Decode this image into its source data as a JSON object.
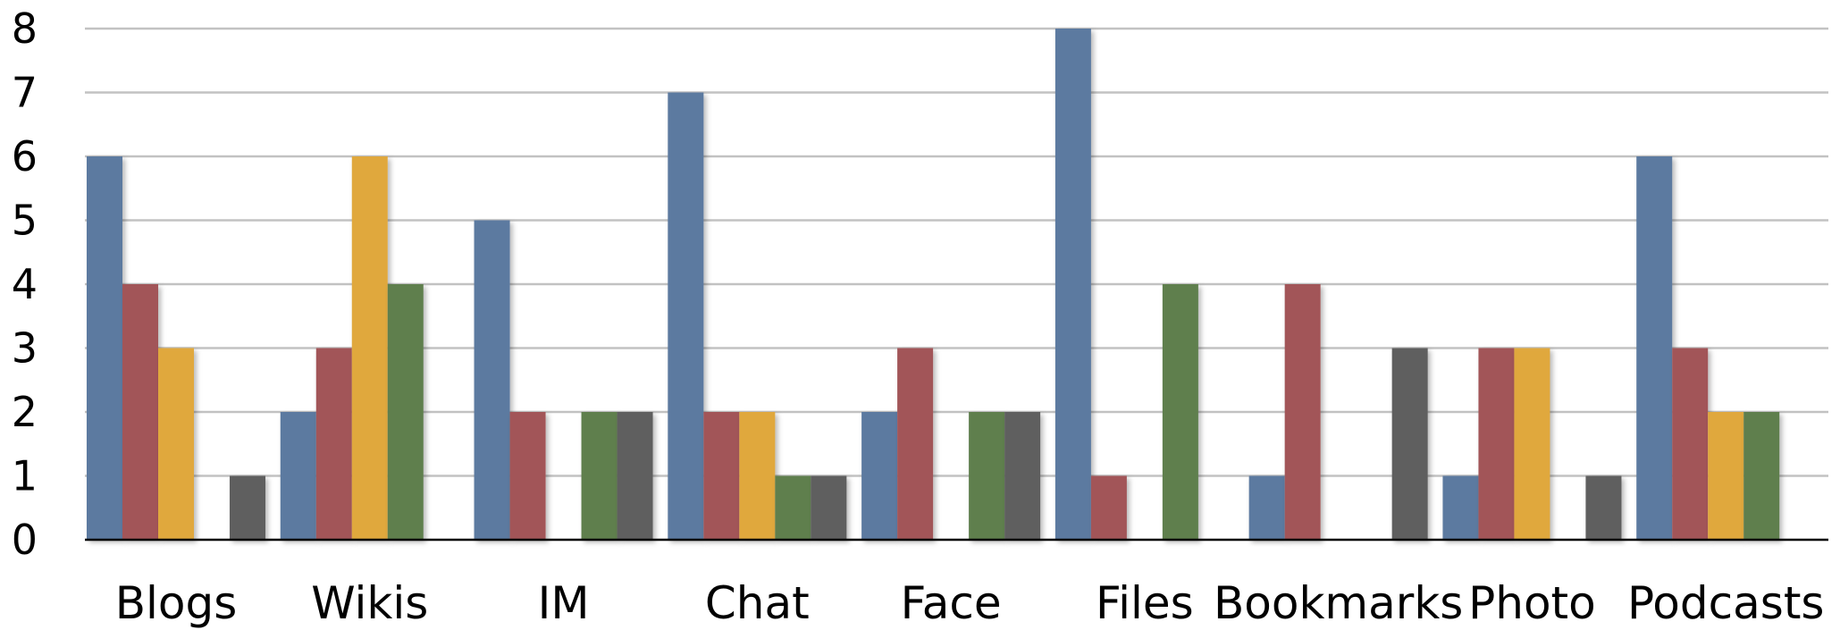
{
  "chart_data": {
    "type": "bar",
    "title": "",
    "xlabel": "",
    "ylabel": "",
    "ylim": [
      0,
      8
    ],
    "yticks": [
      0,
      1,
      2,
      3,
      4,
      5,
      6,
      7,
      8
    ],
    "grid": true,
    "legend": "none",
    "categories": [
      "Blogs",
      "Wikis",
      "IM",
      "Chat",
      "Face",
      "Files",
      "Bookmarks",
      "Photo",
      "Podcasts"
    ],
    "series": [
      {
        "color": "#5b7aa0",
        "values": [
          6,
          2,
          5,
          7,
          2,
          8,
          1,
          1,
          6
        ]
      },
      {
        "color": "#a25558",
        "values": [
          4,
          3,
          2,
          2,
          3,
          1,
          4,
          3,
          3
        ]
      },
      {
        "color": "#e0a83e",
        "values": [
          3,
          6,
          0,
          2,
          0,
          0,
          0,
          3,
          2
        ]
      },
      {
        "color": "#5e7f4e",
        "values": [
          0,
          4,
          2,
          1,
          2,
          4,
          0,
          0,
          2
        ]
      },
      {
        "color": "#5e5e5e",
        "values": [
          1,
          0,
          2,
          1,
          2,
          0,
          3,
          1,
          0
        ]
      }
    ]
  }
}
